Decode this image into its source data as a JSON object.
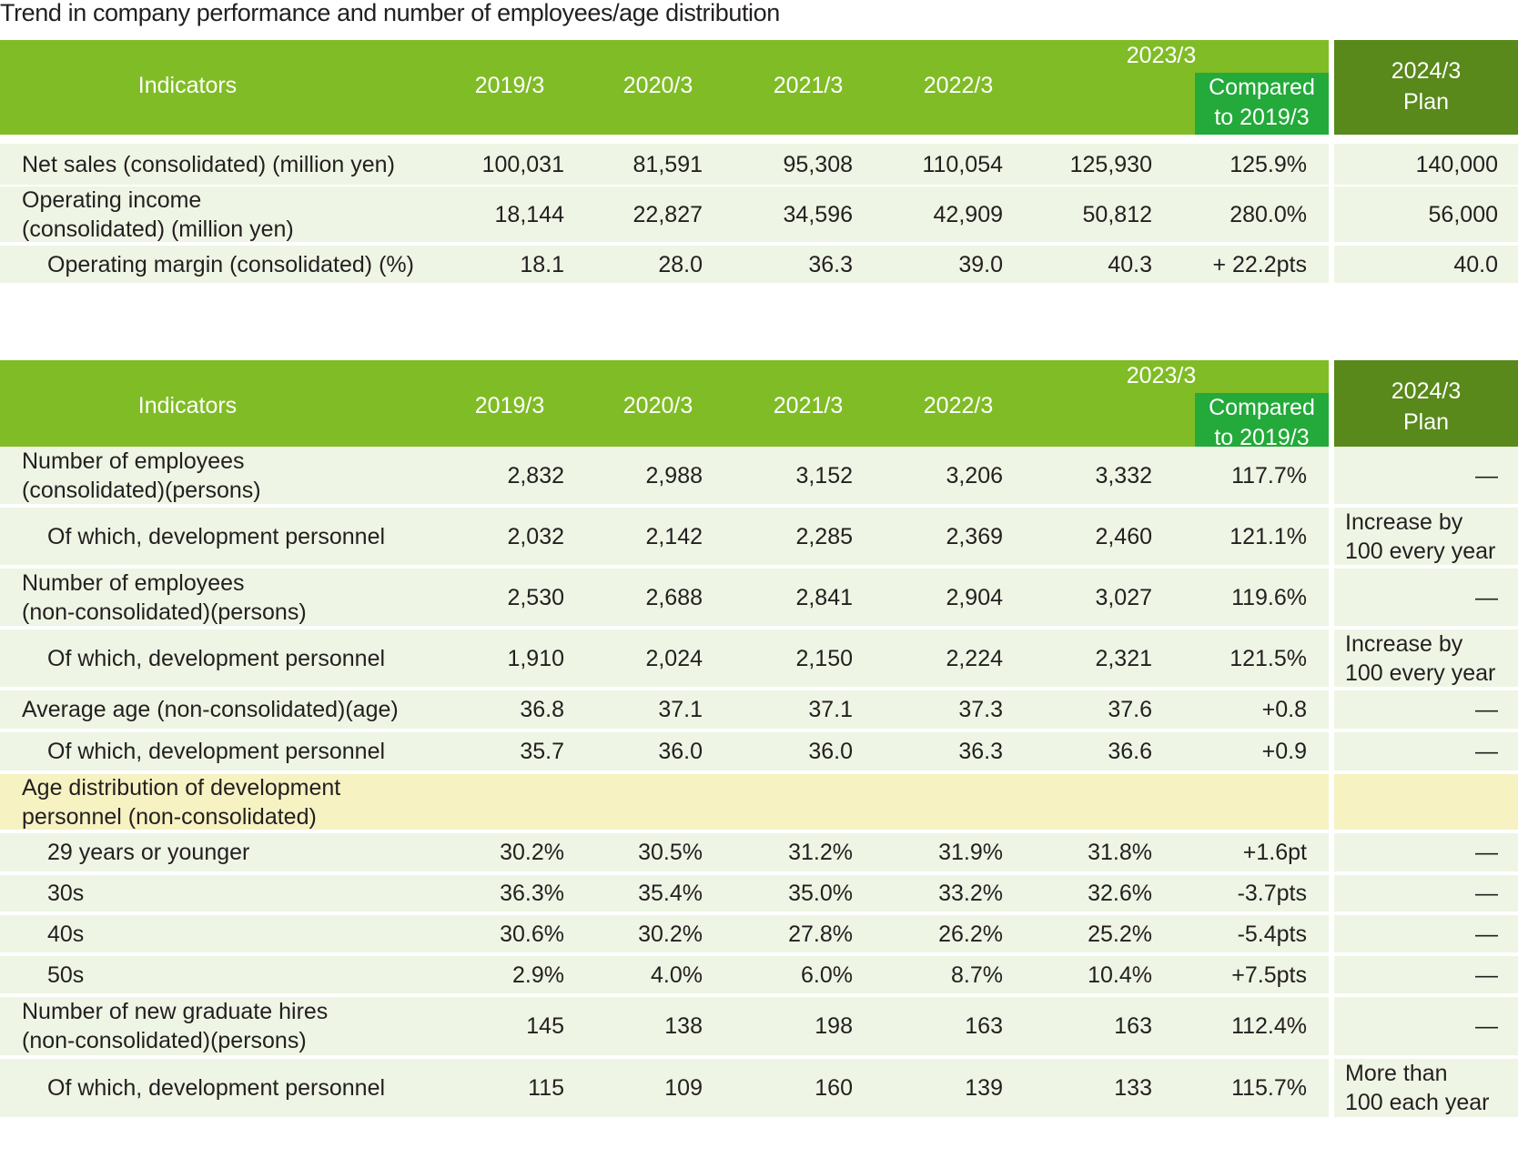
{
  "title": "Trend in company performance and number of employees/age distribution",
  "header": {
    "indicators": "Indicators",
    "years": [
      "2019/3",
      "2020/3",
      "2021/3",
      "2022/3"
    ],
    "current_year": "2023/3",
    "compared_line1": "Compared",
    "compared_line2": "to 2019/3",
    "plan_line1": "2024/3",
    "plan_line2": "Plan"
  },
  "colors": {
    "header_green": "#80bc26",
    "compared_green": "#23aa3a",
    "plan_green": "#58891a",
    "row_bg": "#eef5e4",
    "section_row_bg": "#f6f2c2"
  },
  "table1": {
    "rows": [
      {
        "label": [
          "Net sales (consolidated) (million yen)"
        ],
        "indent": false,
        "values": [
          "100,031",
          "81,591",
          "95,308",
          "110,054",
          "125,930"
        ],
        "compared": "125.9%",
        "plan": [
          "140,000"
        ]
      },
      {
        "label": [
          "Operating income",
          "(consolidated) (million yen)"
        ],
        "indent": false,
        "values": [
          "18,144",
          "22,827",
          "34,596",
          "42,909",
          "50,812"
        ],
        "compared": "280.0%",
        "plan": [
          "56,000"
        ]
      },
      {
        "label": [
          "Operating margin (consolidated) (%)"
        ],
        "indent": true,
        "values": [
          "18.1",
          "28.0",
          "36.3",
          "39.0",
          "40.3"
        ],
        "compared": "+ 22.2pts",
        "plan": [
          "40.0"
        ]
      }
    ]
  },
  "table2": {
    "rows": [
      {
        "label": [
          "Number of employees",
          "(consolidated)(persons)"
        ],
        "indent": false,
        "values": [
          "2,832",
          "2,988",
          "3,152",
          "3,206",
          "3,332"
        ],
        "compared": "117.7%",
        "plan": [
          "—"
        ]
      },
      {
        "label": [
          "Of which, development personnel"
        ],
        "indent": true,
        "values": [
          "2,032",
          "2,142",
          "2,285",
          "2,369",
          "2,460"
        ],
        "compared": "121.1%",
        "plan": [
          "Increase by",
          "100 every year"
        ]
      },
      {
        "label": [
          "Number of employees",
          "(non-consolidated)(persons)"
        ],
        "indent": false,
        "values": [
          "2,530",
          "2,688",
          "2,841",
          "2,904",
          "3,027"
        ],
        "compared": "119.6%",
        "plan": [
          "—"
        ]
      },
      {
        "label": [
          "Of which, development personnel"
        ],
        "indent": true,
        "values": [
          "1,910",
          "2,024",
          "2,150",
          "2,224",
          "2,321"
        ],
        "compared": "121.5%",
        "plan": [
          "Increase by",
          "100 every year"
        ]
      },
      {
        "label": [
          "Average age (non-consolidated)(age)"
        ],
        "indent": false,
        "values": [
          "36.8",
          "37.1",
          "37.1",
          "37.3",
          "37.6"
        ],
        "compared": "+0.8",
        "plan": [
          "—"
        ]
      },
      {
        "label": [
          "Of which, development personnel"
        ],
        "indent": true,
        "values": [
          "35.7",
          "36.0",
          "36.0",
          "36.3",
          "36.6"
        ],
        "compared": "+0.9",
        "plan": [
          "—"
        ]
      },
      {
        "label": [
          "Age distribution of development",
          "personnel (non-consolidated)"
        ],
        "indent": false,
        "section": true,
        "values": [
          "",
          "",
          "",
          "",
          ""
        ],
        "compared": "",
        "plan": [
          ""
        ]
      },
      {
        "label": [
          "29 years or younger"
        ],
        "indent": true,
        "values": [
          "30.2%",
          "30.5%",
          "31.2%",
          "31.9%",
          "31.8%"
        ],
        "compared": "+1.6pt",
        "plan": [
          "—"
        ]
      },
      {
        "label": [
          "30s"
        ],
        "indent": true,
        "values": [
          "36.3%",
          "35.4%",
          "35.0%",
          "33.2%",
          "32.6%"
        ],
        "compared": "-3.7pts",
        "plan": [
          "—"
        ]
      },
      {
        "label": [
          "40s"
        ],
        "indent": true,
        "values": [
          "30.6%",
          "30.2%",
          "27.8%",
          "26.2%",
          "25.2%"
        ],
        "compared": "-5.4pts",
        "plan": [
          "—"
        ]
      },
      {
        "label": [
          "50s"
        ],
        "indent": true,
        "values": [
          "2.9%",
          "4.0%",
          "6.0%",
          "8.7%",
          "10.4%"
        ],
        "compared": "+7.5pts",
        "plan": [
          "—"
        ]
      },
      {
        "label": [
          "Number of new graduate hires",
          "(non-consolidated)(persons)"
        ],
        "indent": false,
        "values": [
          "145",
          "138",
          "198",
          "163",
          "163"
        ],
        "compared": "112.4%",
        "plan": [
          "—"
        ]
      },
      {
        "label": [
          "Of which, development personnel"
        ],
        "indent": true,
        "values": [
          "115",
          "109",
          "160",
          "139",
          "133"
        ],
        "compared": "115.7%",
        "plan": [
          "More than",
          "100 each year"
        ]
      }
    ]
  }
}
